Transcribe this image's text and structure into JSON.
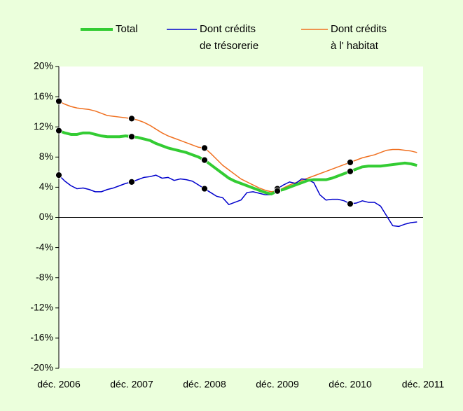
{
  "chart_data": {
    "type": "line",
    "categories": [
      "déc. 2006",
      null,
      null,
      null,
      null,
      null,
      null,
      null,
      null,
      null,
      null,
      null,
      "déc. 2007",
      null,
      null,
      null,
      null,
      null,
      null,
      null,
      null,
      null,
      null,
      null,
      "déc. 2008",
      null,
      null,
      null,
      null,
      null,
      null,
      null,
      null,
      null,
      null,
      null,
      "déc. 2009",
      null,
      null,
      null,
      null,
      null,
      null,
      null,
      null,
      null,
      null,
      null,
      "déc. 2010",
      null,
      null,
      null,
      null,
      null,
      null,
      null,
      null,
      null,
      null,
      null,
      "déc. 2011"
    ],
    "series": [
      {
        "name": "Total",
        "color": "#33cc33",
        "values": [
          11.5,
          11.2,
          11.0,
          11.0,
          11.2,
          11.2,
          11.0,
          10.8,
          10.7,
          10.7,
          10.7,
          10.8,
          10.7,
          10.6,
          10.4,
          10.2,
          9.8,
          9.5,
          9.2,
          9.0,
          8.8,
          8.6,
          8.3,
          8.0,
          7.6,
          7.0,
          6.4,
          5.8,
          5.2,
          4.8,
          4.5,
          4.2,
          3.9,
          3.6,
          3.3,
          3.1,
          3.5,
          3.7,
          4.0,
          4.3,
          4.6,
          4.9,
          5.0,
          5.0,
          5.0,
          5.2,
          5.5,
          5.8,
          6.1,
          6.4,
          6.7,
          6.8,
          6.8,
          6.8,
          6.9,
          7.0,
          7.1,
          7.2,
          7.1,
          6.9,
          null
        ]
      },
      {
        "name": "Dont crédits\nde trésorerie",
        "color": "#0000cc",
        "values": [
          5.6,
          4.8,
          4.2,
          3.8,
          3.9,
          3.7,
          3.4,
          3.4,
          3.7,
          3.9,
          4.2,
          4.5,
          4.7,
          5.0,
          5.3,
          5.4,
          5.6,
          5.2,
          5.3,
          4.9,
          5.1,
          5.0,
          4.8,
          4.3,
          3.8,
          3.3,
          2.8,
          2.6,
          1.7,
          2.0,
          2.3,
          3.3,
          3.4,
          3.2,
          3.0,
          3.0,
          3.8,
          4.3,
          4.7,
          4.5,
          5.1,
          5.0,
          4.6,
          3.0,
          2.3,
          2.4,
          2.4,
          2.2,
          1.8,
          1.9,
          2.2,
          2.0,
          2.0,
          1.5,
          0.2,
          -1.1,
          -1.2,
          -0.9,
          -0.7,
          -0.6,
          null
        ]
      },
      {
        "name": "Dont crédits\nà l' habitat",
        "color": "#f07020",
        "values": [
          15.4,
          15.0,
          14.7,
          14.5,
          14.4,
          14.3,
          14.1,
          13.8,
          13.5,
          13.4,
          13.3,
          13.2,
          13.1,
          12.9,
          12.6,
          12.2,
          11.7,
          11.2,
          10.8,
          10.5,
          10.2,
          9.9,
          9.6,
          9.3,
          9.2,
          8.5,
          7.7,
          6.9,
          6.3,
          5.7,
          5.1,
          4.7,
          4.3,
          3.9,
          3.6,
          3.4,
          3.5,
          3.9,
          4.3,
          4.6,
          4.9,
          5.2,
          5.5,
          5.8,
          6.1,
          6.4,
          6.7,
          7.0,
          7.3,
          7.6,
          7.9,
          8.1,
          8.3,
          8.6,
          8.9,
          9.0,
          9.0,
          8.9,
          8.8,
          8.6,
          null
        ]
      }
    ],
    "ylim": [
      -20,
      20
    ],
    "yticks": [
      {
        "value": -20,
        "label": "-20%"
      },
      {
        "value": -16,
        "label": "-16%"
      },
      {
        "value": -12,
        "label": "-12%"
      },
      {
        "value": -8,
        "label": "-8%"
      },
      {
        "value": -4,
        "label": "-4%"
      },
      {
        "value": 0,
        "label": "0%"
      },
      {
        "value": 4,
        "label": "4%"
      },
      {
        "value": 8,
        "label": "8%"
      },
      {
        "value": 12,
        "label": "12%"
      },
      {
        "value": 16,
        "label": "16%"
      },
      {
        "value": 20,
        "label": "20%"
      }
    ],
    "markers": true,
    "legend": "top"
  }
}
